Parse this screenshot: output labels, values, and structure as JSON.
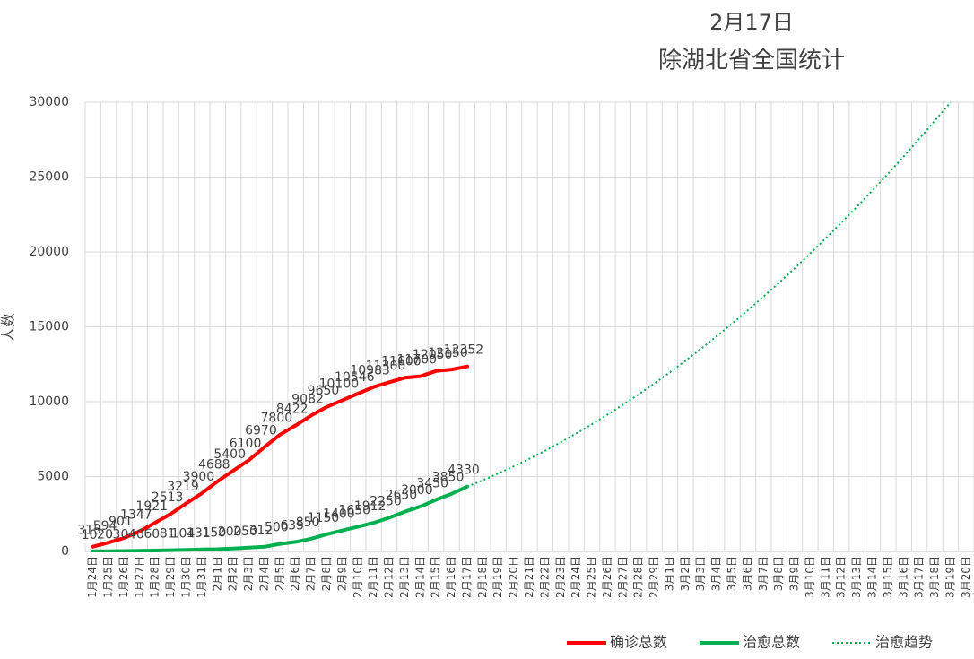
{
  "chart_data": {
    "type": "line",
    "title": "2月17日",
    "subtitle": "除湖北省全国统计",
    "y_label": "人数",
    "categories": [
      "1月24日",
      "1月25日",
      "1月26日",
      "1月27日",
      "1月28日",
      "1月29日",
      "1月30日",
      "1月31日",
      "2月1日",
      "2月2日",
      "2月3日",
      "2月4日",
      "2月5日",
      "2月6日",
      "2月7日",
      "2月8日",
      "2月9日",
      "2月10日",
      "2月11日",
      "2月12日",
      "2月13日",
      "2月14日",
      "2月15日",
      "2月16日",
      "2月17日",
      "2月18日",
      "2月19日",
      "2月20日",
      "2月21日",
      "2月22日",
      "2月23日",
      "2月24日",
      "2月25日",
      "2月26日",
      "2月27日",
      "2月28日",
      "2月29日",
      "3月1日",
      "3月2日",
      "3月3日",
      "3月4日",
      "3月5日",
      "3月6日",
      "3月7日",
      "3月8日",
      "3月9日",
      "3月10日",
      "3月11日",
      "3月12日",
      "3月13日",
      "3月14日",
      "3月15日",
      "3月16日",
      "3月17日",
      "3月18日",
      "3月19日",
      "3月20日"
    ],
    "series": [
      {
        "name": "确诊总数",
        "color": "#ff0000",
        "style": "solid",
        "labels": true,
        "values": [
          315,
          594,
          901,
          1347,
          1921,
          2513,
          3219,
          3900,
          4688,
          5400,
          6100,
          6970,
          7800,
          8422,
          9082,
          9650,
          10100,
          10546,
          10983,
          11300,
          11600,
          11700,
          12050,
          12150,
          12352,
          null,
          null,
          null,
          null,
          null,
          null,
          null,
          null,
          null,
          null,
          null,
          null,
          null,
          null,
          null,
          null,
          null,
          null,
          null,
          null,
          null,
          null,
          null,
          null,
          null,
          null,
          null,
          null,
          null,
          null,
          null,
          null
        ]
      },
      {
        "name": "治愈总数",
        "color": "#00b050",
        "style": "solid",
        "labels": true,
        "values": [
          10,
          20,
          30,
          40,
          60,
          81,
          104,
          131,
          150,
          200,
          250,
          312,
          500,
          635,
          850,
          1150,
          1400,
          1650,
          1912,
          2250,
          2650,
          3000,
          3450,
          3850,
          4330,
          null,
          null,
          null,
          null,
          null,
          null,
          null,
          null,
          null,
          null,
          null,
          null,
          null,
          null,
          null,
          null,
          null,
          null,
          null,
          null,
          null,
          null,
          null,
          null,
          null,
          null,
          null,
          null,
          null,
          null,
          null,
          null
        ]
      },
      {
        "name": "治愈趋势",
        "color": "#00b050",
        "style": "dotted",
        "labels": false,
        "values": [
          null,
          null,
          null,
          null,
          null,
          null,
          null,
          null,
          null,
          null,
          null,
          null,
          null,
          null,
          null,
          null,
          null,
          null,
          null,
          null,
          null,
          null,
          null,
          null,
          4330,
          4757,
          5211,
          5691,
          6198,
          6732,
          7293,
          7880,
          8495,
          9136,
          9803,
          10497,
          11218,
          11966,
          12740,
          13541,
          14370,
          15224,
          16105,
          17014,
          17948,
          18910,
          19899,
          20914,
          21956,
          23025,
          24121,
          25243,
          26392,
          27568,
          28771,
          30001,
          null
        ]
      }
    ],
    "ylim": [
      0,
      30000
    ],
    "yticks": [
      0,
      5000,
      10000,
      15000,
      20000,
      25000,
      30000
    ],
    "grid": true,
    "legend": "bottom-right"
  }
}
